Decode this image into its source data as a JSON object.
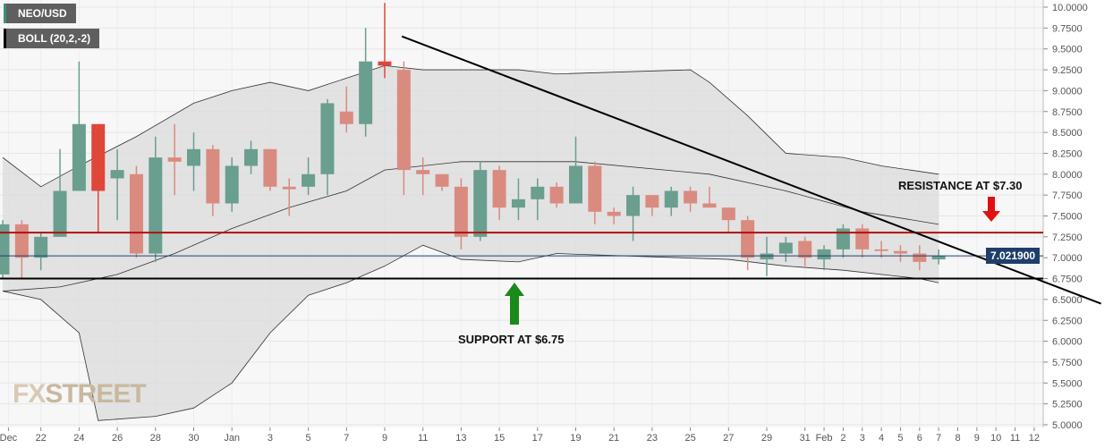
{
  "legend": {
    "symbol": "NEO/USD",
    "indicator": "BOLL (20,2,-2)"
  },
  "current_price": "7.021900",
  "annotations": {
    "resistance": "RESISTANCE AT $7.30",
    "support": "SUPPORT AT $6.75"
  },
  "watermark": "FXSTREET",
  "colors": {
    "up": "#6a9e8e",
    "down": "#d98b80",
    "strong_down": "#e0463a",
    "band_fill": "#dcdcdc",
    "resistance": "#b01010",
    "support": "#000000",
    "price_line": "#1f3f6a"
  },
  "chart_data": {
    "type": "candlestick",
    "title": "NEO/USD",
    "ylim": [
      5.0,
      10.0
    ],
    "yticks": [
      "10.0000",
      "9.7500",
      "9.5000",
      "9.2500",
      "9.0000",
      "8.7500",
      "8.5000",
      "8.2500",
      "8.0000",
      "7.7500",
      "7.5000",
      "7.2500",
      "7.0000",
      "6.7500",
      "6.5000",
      "6.2500",
      "6.0000",
      "5.7500",
      "5.5000",
      "5.2500",
      "5.0000"
    ],
    "xticks": [
      {
        "i": 0.3,
        "t": "Dec"
      },
      {
        "i": 2,
        "t": "22"
      },
      {
        "i": 4,
        "t": "24"
      },
      {
        "i": 6,
        "t": "26"
      },
      {
        "i": 8,
        "t": "28"
      },
      {
        "i": 10,
        "t": "30"
      },
      {
        "i": 12,
        "t": "Jan"
      },
      {
        "i": 14,
        "t": "3"
      },
      {
        "i": 16,
        "t": "5"
      },
      {
        "i": 18,
        "t": "7"
      },
      {
        "i": 20,
        "t": "9"
      },
      {
        "i": 22,
        "t": "11"
      },
      {
        "i": 24,
        "t": "13"
      },
      {
        "i": 26,
        "t": "15"
      },
      {
        "i": 28,
        "t": "17"
      },
      {
        "i": 30,
        "t": "19"
      },
      {
        "i": 32,
        "t": "21"
      },
      {
        "i": 34,
        "t": "23"
      },
      {
        "i": 36,
        "t": "25"
      },
      {
        "i": 38,
        "t": "27"
      },
      {
        "i": 40,
        "t": "29"
      },
      {
        "i": 42,
        "t": "31"
      },
      {
        "i": 43,
        "t": "Feb"
      },
      {
        "i": 44,
        "t": "2"
      },
      {
        "i": 45,
        "t": "3"
      },
      {
        "i": 46,
        "t": "4"
      },
      {
        "i": 47,
        "t": "5"
      },
      {
        "i": 48,
        "t": "6"
      },
      {
        "i": 49,
        "t": "7"
      },
      {
        "i": 50,
        "t": "8"
      },
      {
        "i": 51,
        "t": "9"
      },
      {
        "i": 52,
        "t": "10"
      },
      {
        "i": 53,
        "t": "11"
      },
      {
        "i": 54,
        "t": "12"
      }
    ],
    "ohlc": [
      [
        6.8,
        7.4,
        6.75,
        7.45
      ],
      [
        7.4,
        7.0,
        6.75,
        7.45
      ],
      [
        7.0,
        7.25,
        6.85,
        7.3
      ],
      [
        7.25,
        7.8,
        7.25,
        8.3
      ],
      [
        7.8,
        8.6,
        7.8,
        9.35
      ],
      [
        8.6,
        7.8,
        7.3,
        8.6
      ],
      [
        7.95,
        8.05,
        7.45,
        8.3
      ],
      [
        8.0,
        7.05,
        7.0,
        8.1
      ],
      [
        7.05,
        8.2,
        6.95,
        8.45
      ],
      [
        8.2,
        8.15,
        7.75,
        8.6
      ],
      [
        8.1,
        8.3,
        7.8,
        8.5
      ],
      [
        8.3,
        7.65,
        7.5,
        8.35
      ],
      [
        7.65,
        8.1,
        7.55,
        8.2
      ],
      [
        8.1,
        8.3,
        8.0,
        8.4
      ],
      [
        8.3,
        7.85,
        7.8,
        8.3
      ],
      [
        7.85,
        7.82,
        7.5,
        7.95
      ],
      [
        7.85,
        8.0,
        7.75,
        8.2
      ],
      [
        8.0,
        8.85,
        7.75,
        8.9
      ],
      [
        8.75,
        8.6,
        8.5,
        9.05
      ],
      [
        8.6,
        9.35,
        8.45,
        9.75
      ],
      [
        9.35,
        9.3,
        9.15,
        10.05
      ],
      [
        9.25,
        8.05,
        7.75,
        9.35
      ],
      [
        8.05,
        8.0,
        7.75,
        8.2
      ],
      [
        8.0,
        7.85,
        7.8,
        8.0
      ],
      [
        7.85,
        7.25,
        7.1,
        7.95
      ],
      [
        7.25,
        8.05,
        7.2,
        8.15
      ],
      [
        8.05,
        7.6,
        7.45,
        8.1
      ],
      [
        7.6,
        7.7,
        7.45,
        7.95
      ],
      [
        7.7,
        7.85,
        7.45,
        7.95
      ],
      [
        7.85,
        7.65,
        7.6,
        7.9
      ],
      [
        7.65,
        8.1,
        7.65,
        8.45
      ],
      [
        8.1,
        7.55,
        7.4,
        8.15
      ],
      [
        7.55,
        7.5,
        7.4,
        7.6
      ],
      [
        7.5,
        7.75,
        7.2,
        7.85
      ],
      [
        7.75,
        7.6,
        7.5,
        7.75
      ],
      [
        7.6,
        7.8,
        7.5,
        7.85
      ],
      [
        7.8,
        7.65,
        7.55,
        7.85
      ],
      [
        7.65,
        7.6,
        7.6,
        7.85
      ],
      [
        7.6,
        7.45,
        7.3,
        7.6
      ],
      [
        7.45,
        7.0,
        6.85,
        7.5
      ],
      [
        6.98,
        7.05,
        6.78,
        7.25
      ],
      [
        7.05,
        7.18,
        6.95,
        7.25
      ],
      [
        7.2,
        7.0,
        6.9,
        7.25
      ],
      [
        6.98,
        7.1,
        6.85,
        7.15
      ],
      [
        7.1,
        7.35,
        7.0,
        7.4
      ],
      [
        7.35,
        7.1,
        7.0,
        7.4
      ],
      [
        7.1,
        7.08,
        7.0,
        7.2
      ],
      [
        7.08,
        7.05,
        6.95,
        7.15
      ],
      [
        7.05,
        6.95,
        6.85,
        7.15
      ],
      [
        6.98,
        7.02,
        6.92,
        7.1
      ]
    ],
    "strong_red_index": [
      5,
      20
    ],
    "boll_upper": [
      [
        0,
        8.2
      ],
      [
        2,
        7.85
      ],
      [
        4,
        8.1
      ],
      [
        7,
        8.45
      ],
      [
        10,
        8.85
      ],
      [
        12,
        9.0
      ],
      [
        14,
        9.1
      ],
      [
        16,
        9.0
      ],
      [
        18,
        9.15
      ],
      [
        20,
        9.3
      ],
      [
        22,
        9.25
      ],
      [
        27,
        9.25
      ],
      [
        29,
        9.2
      ],
      [
        36,
        9.25
      ],
      [
        37,
        9.1
      ],
      [
        39,
        8.7
      ],
      [
        41,
        8.25
      ],
      [
        44,
        8.2
      ],
      [
        46,
        8.1
      ],
      [
        49,
        8.0
      ]
    ],
    "boll_middle": [
      [
        0,
        6.6
      ],
      [
        3,
        6.65
      ],
      [
        6,
        6.8
      ],
      [
        9,
        7.05
      ],
      [
        12,
        7.35
      ],
      [
        15,
        7.6
      ],
      [
        18,
        7.8
      ],
      [
        20,
        8.05
      ],
      [
        24,
        8.15
      ],
      [
        30,
        8.15
      ],
      [
        37,
        8.0
      ],
      [
        41,
        7.8
      ],
      [
        45,
        7.55
      ],
      [
        49,
        7.4
      ]
    ],
    "boll_lower": [
      [
        0,
        6.6
      ],
      [
        2,
        6.5
      ],
      [
        4,
        6.1
      ],
      [
        5,
        5.05
      ],
      [
        8,
        5.1
      ],
      [
        10,
        5.2
      ],
      [
        12,
        5.5
      ],
      [
        14,
        6.1
      ],
      [
        16,
        6.55
      ],
      [
        18,
        6.7
      ],
      [
        20,
        6.9
      ],
      [
        22,
        7.15
      ],
      [
        24,
        6.98
      ],
      [
        27,
        6.95
      ],
      [
        29,
        7.05
      ],
      [
        38,
        6.98
      ],
      [
        41,
        6.9
      ],
      [
        44,
        6.85
      ],
      [
        48,
        6.75
      ],
      [
        49,
        6.7
      ]
    ],
    "support": 6.75,
    "resistance": 7.3,
    "last": 7.0219,
    "trendline": [
      [
        20.9,
        9.65
      ],
      [
        57.5,
        6.45
      ]
    ]
  }
}
